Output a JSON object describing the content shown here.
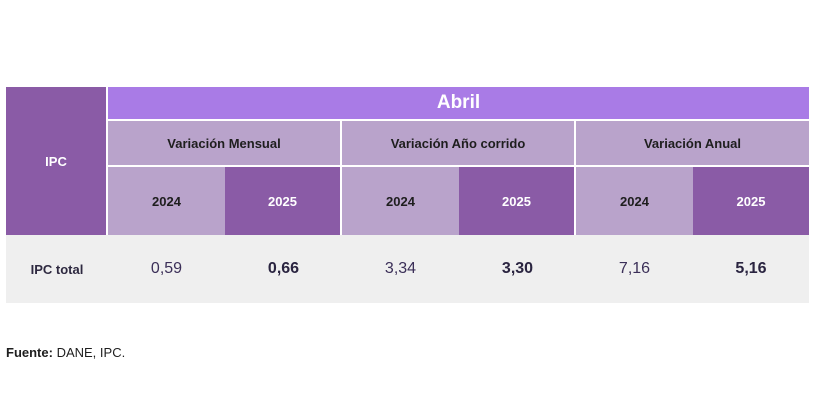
{
  "table": {
    "row_header": "IPC",
    "month": "Abril",
    "groups": [
      "Variación Mensual",
      "Variación Año corrido",
      "Variación Anual"
    ],
    "years": [
      "2024",
      "2025",
      "2024",
      "2025",
      "2024",
      "2025"
    ],
    "row_label": "IPC total",
    "values": [
      "0,59",
      "0,66",
      "3,34",
      "3,30",
      "7,16",
      "5,16"
    ]
  },
  "source": {
    "label": "Fuente:",
    "text": " DANE, IPC."
  },
  "colors": {
    "dark_purple": "#8a5ba6",
    "light_purple": "#b9a3cb",
    "month_purple": "#a97be6",
    "row_bg": "#efefef"
  }
}
